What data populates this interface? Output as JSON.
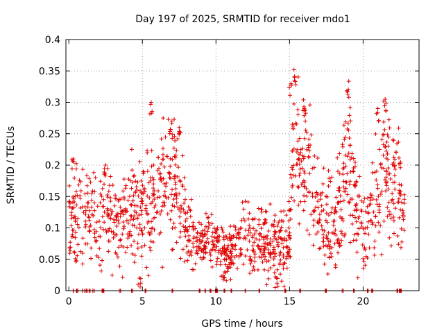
{
  "chart_data": {
    "type": "scatter",
    "title": "Day 197 of 2025, SRMTID for receiver mdo1",
    "xlabel": "GPS time / hours",
    "ylabel": "SRMTID / TECUs",
    "xlim": [
      -0.2,
      23.8
    ],
    "ylim": [
      0,
      0.4
    ],
    "x_ticks": [
      0,
      5,
      10,
      15,
      20
    ],
    "x_tick_labels": [
      "0",
      "5",
      "10",
      "15",
      "20"
    ],
    "y_ticks": [
      0,
      0.05,
      0.1,
      0.15,
      0.2,
      0.25,
      0.3,
      0.35,
      0.4
    ],
    "y_tick_labels": [
      "0",
      "0.05",
      "0.1",
      "0.15",
      "0.2",
      "0.25",
      "0.3",
      "0.35",
      "0.4"
    ],
    "grid": true,
    "marker": "plus",
    "marker_color": "#e00000",
    "series": [
      {
        "name": "SRMTID",
        "trend": {
          "x": [
            0.0,
            0.5,
            1.0,
            1.5,
            2.0,
            2.5,
            3.0,
            3.5,
            4.0,
            4.5,
            5.0,
            5.5,
            6.0,
            6.5,
            7.0,
            7.5,
            8.0,
            8.5,
            9.0,
            9.5,
            10.0,
            10.5,
            11.0,
            11.5,
            12.0,
            12.5,
            13.0,
            13.5,
            14.0,
            14.5,
            15.0,
            15.3,
            15.6,
            16.0,
            16.5,
            17.0,
            17.5,
            18.0,
            18.5,
            19.0,
            19.5,
            20.0,
            20.5,
            21.0,
            21.5,
            22.0,
            22.5,
            22.8
          ],
          "y": [
            0.1,
            0.12,
            0.13,
            0.12,
            0.11,
            0.12,
            0.11,
            0.12,
            0.11,
            0.12,
            0.12,
            0.13,
            0.16,
            0.17,
            0.18,
            0.17,
            0.1,
            0.08,
            0.08,
            0.08,
            0.07,
            0.06,
            0.06,
            0.08,
            0.09,
            0.08,
            0.08,
            0.07,
            0.07,
            0.07,
            0.09,
            0.25,
            0.22,
            0.2,
            0.18,
            0.12,
            0.1,
            0.11,
            0.15,
            0.2,
            0.13,
            0.09,
            0.1,
            0.15,
            0.2,
            0.18,
            0.15,
            0.1
          ],
          "spread": [
            0.035,
            0.04,
            0.04,
            0.04,
            0.04,
            0.04,
            0.04,
            0.04,
            0.04,
            0.04,
            0.04,
            0.045,
            0.06,
            0.055,
            0.055,
            0.05,
            0.03,
            0.025,
            0.025,
            0.02,
            0.02,
            0.02,
            0.02,
            0.025,
            0.03,
            0.03,
            0.03,
            0.03,
            0.03,
            0.03,
            0.04,
            0.06,
            0.06,
            0.06,
            0.05,
            0.04,
            0.035,
            0.04,
            0.05,
            0.06,
            0.045,
            0.035,
            0.04,
            0.05,
            0.05,
            0.05,
            0.05,
            0.03
          ]
        },
        "peaks": [
          {
            "x": 0.3,
            "y": 0.21
          },
          {
            "x": 2.5,
            "y": 0.2
          },
          {
            "x": 5.6,
            "y": 0.3
          },
          {
            "x": 7.0,
            "y": 0.27
          },
          {
            "x": 7.5,
            "y": 0.26
          },
          {
            "x": 15.3,
            "y": 0.352
          },
          {
            "x": 15.1,
            "y": 0.33
          },
          {
            "x": 16.0,
            "y": 0.29
          },
          {
            "x": 19.0,
            "y": 0.32
          },
          {
            "x": 21.5,
            "y": 0.305
          },
          {
            "x": 21.0,
            "y": 0.29
          },
          {
            "x": 4.8,
            "y": 0.02
          },
          {
            "x": 14.1,
            "y": 0.02
          },
          {
            "x": 10.6,
            "y": 0.03
          }
        ],
        "zero_points_x": [
          0.3,
          0.5,
          0.6,
          1.0,
          1.2,
          1.4,
          1.7,
          2.3,
          2.4,
          3.5,
          4.3,
          5.2,
          7.0,
          8.9,
          9.3,
          9.6,
          10.0,
          10.1,
          10.6,
          11.0,
          12.0,
          12.9,
          14.7,
          15.7,
          17.5,
          18.6,
          19.4,
          20.3,
          20.6,
          22.3,
          22.5,
          22.6
        ]
      }
    ]
  }
}
